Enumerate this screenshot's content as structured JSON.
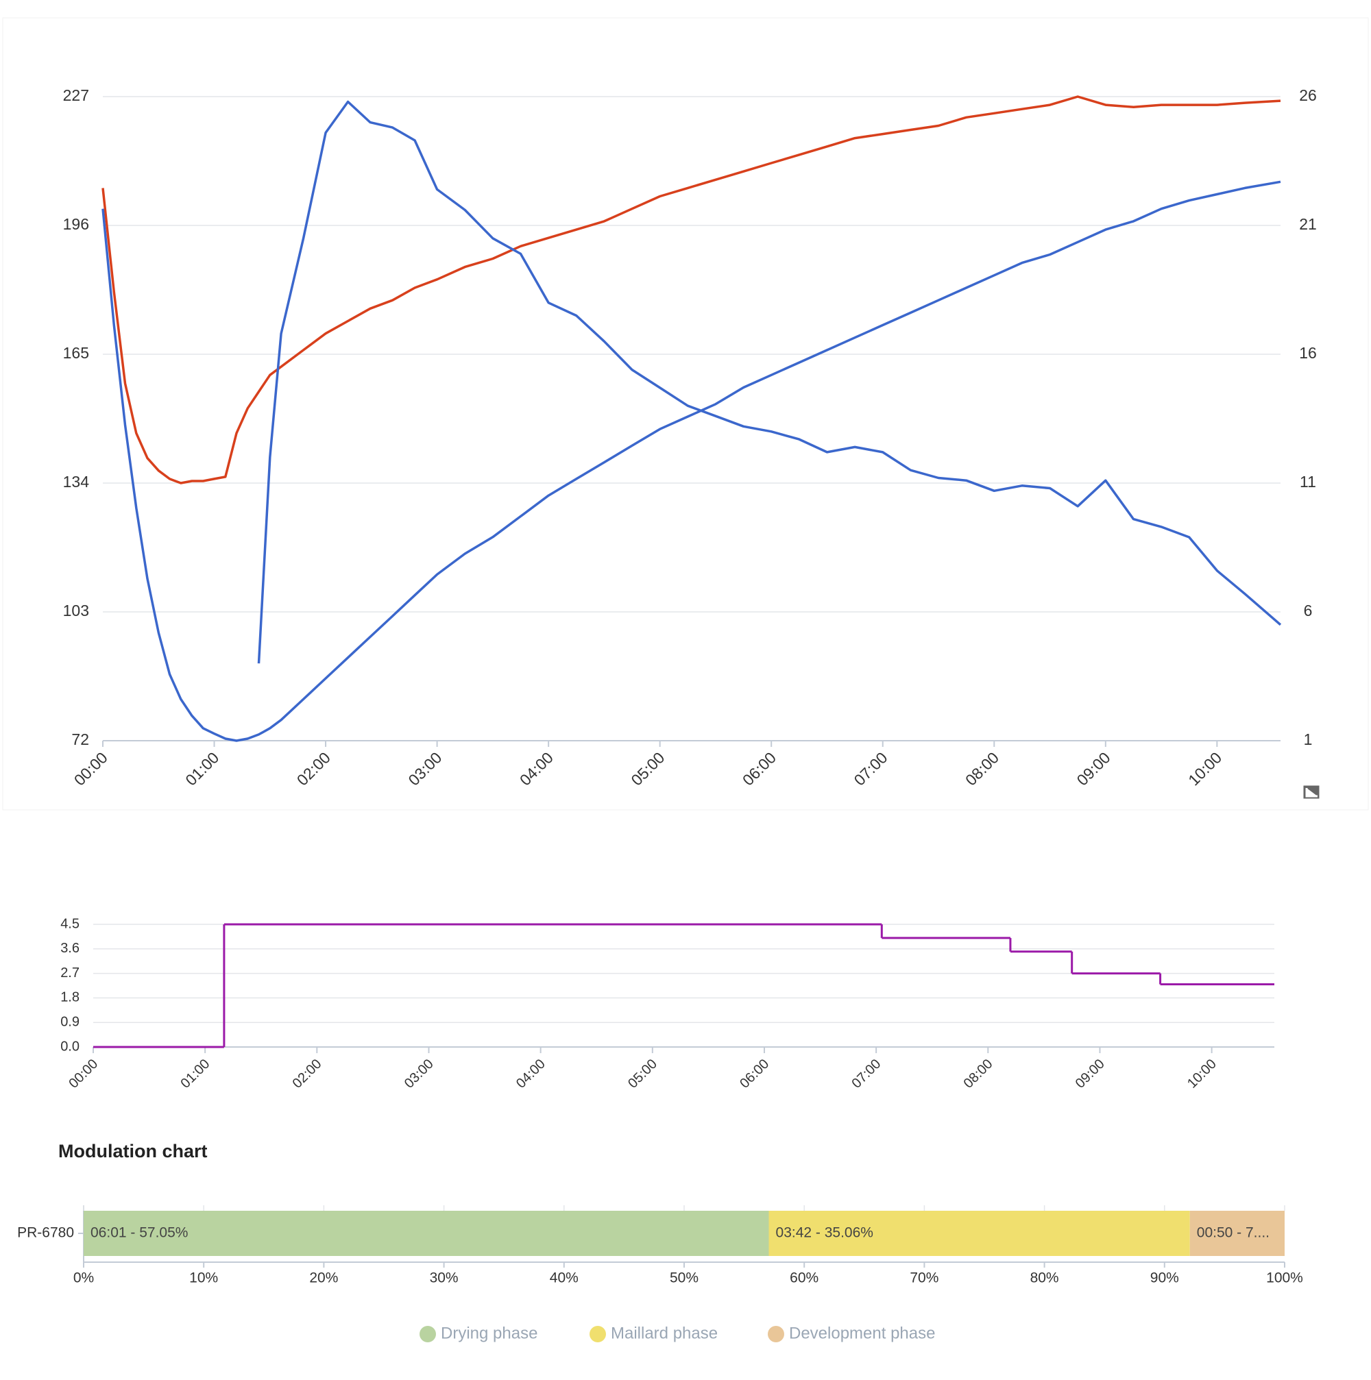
{
  "chart_data": [
    {
      "type": "line",
      "x": [
        0,
        0.1,
        0.2,
        0.3,
        0.4,
        0.5,
        0.6,
        0.7,
        0.8,
        0.9,
        1.0,
        1.1,
        1.2,
        1.3,
        1.4,
        1.5,
        1.6,
        1.8,
        2.0,
        2.2,
        2.4,
        2.6,
        2.8,
        3.0,
        3.25,
        3.5,
        3.75,
        4.0,
        4.25,
        4.5,
        4.75,
        5.0,
        5.25,
        5.5,
        5.75,
        6.0,
        6.25,
        6.5,
        6.75,
        7.0,
        7.25,
        7.5,
        7.75,
        8.0,
        8.25,
        8.5,
        8.75,
        9.0,
        9.25,
        9.5,
        9.75,
        10.0,
        10.25,
        10.57
      ],
      "xlim": [
        0,
        10.57
      ],
      "xticks": [
        {
          "value": 0,
          "label": "00:00"
        },
        {
          "value": 1,
          "label": "01:00"
        },
        {
          "value": 2,
          "label": "02:00"
        },
        {
          "value": 3,
          "label": "03:00"
        },
        {
          "value": 4,
          "label": "04:00"
        },
        {
          "value": 5,
          "label": "05:00"
        },
        {
          "value": 6,
          "label": "06:00"
        },
        {
          "value": 7,
          "label": "07:00"
        },
        {
          "value": 8,
          "label": "08:00"
        },
        {
          "value": 9,
          "label": "09:00"
        },
        {
          "value": 10,
          "label": "10:00"
        }
      ],
      "ylim": [
        72,
        227
      ],
      "yticks": [
        72,
        103,
        134,
        165,
        196,
        227
      ],
      "y2lim": [
        1,
        26
      ],
      "y2ticks": [
        1,
        6,
        11,
        16,
        21,
        26
      ],
      "grid": true,
      "series": [
        {
          "color": "#d8401c",
          "values": [
            205,
            180,
            158,
            146,
            140,
            137,
            135,
            134,
            134.5,
            134.5,
            135,
            135.5,
            146,
            152,
            156,
            160,
            162,
            166,
            170,
            173,
            176,
            178,
            181,
            183,
            186,
            188,
            191,
            193,
            195,
            197,
            200,
            203,
            205,
            207,
            209,
            211,
            213,
            215,
            217,
            218,
            219,
            220,
            222,
            223,
            224,
            225,
            227,
            225,
            224.5,
            225,
            225,
            225,
            225.5,
            226
          ]
        },
        {
          "color": "#3b67cc",
          "values": [
            200,
            172,
            148,
            128,
            111,
            98,
            88,
            82,
            78,
            75,
            73.7,
            72.5,
            72,
            72.5,
            73.5,
            75,
            77,
            82,
            87,
            92,
            97,
            102,
            107,
            112,
            117,
            121,
            126,
            131,
            135,
            139,
            143,
            147,
            150,
            153,
            157,
            160,
            163,
            166,
            169,
            172,
            175,
            178,
            181,
            184,
            187,
            189,
            192,
            195,
            197,
            200,
            202,
            203.5,
            205,
            206.5
          ]
        },
        {
          "color": "#3b67cc",
          "axis": "y2",
          "values": [
            null,
            null,
            null,
            null,
            null,
            null,
            null,
            null,
            null,
            null,
            null,
            null,
            null,
            null,
            4,
            12,
            16.8,
            20.5,
            24.6,
            25.8,
            25,
            24.8,
            24.3,
            22.4,
            21.6,
            20.5,
            19.9,
            18,
            17.5,
            16.5,
            15.4,
            14.7,
            14,
            13.6,
            13.2,
            13,
            12.7,
            12.2,
            12.4,
            12.2,
            11.5,
            11.2,
            11.1,
            10.7,
            10.9,
            10.8,
            10.1,
            11.1,
            9.6,
            9.3,
            8.9,
            7.6,
            6.7,
            5.5
          ]
        }
      ]
    },
    {
      "type": "line",
      "step": "post",
      "x": [
        0,
        1.17,
        7.05,
        8.2,
        8.75,
        9.54,
        10.56
      ],
      "xlim": [
        0,
        10.56
      ],
      "xticks": [
        {
          "value": 0,
          "label": "00:00"
        },
        {
          "value": 1,
          "label": "01:00"
        },
        {
          "value": 2,
          "label": "02:00"
        },
        {
          "value": 3,
          "label": "03:00"
        },
        {
          "value": 4,
          "label": "04:00"
        },
        {
          "value": 5,
          "label": "05:00"
        },
        {
          "value": 6,
          "label": "06:00"
        },
        {
          "value": 7,
          "label": "07:00"
        },
        {
          "value": 8,
          "label": "08:00"
        },
        {
          "value": 9,
          "label": "09:00"
        },
        {
          "value": 10,
          "label": "10:00"
        }
      ],
      "ylim": [
        0,
        4.5
      ],
      "yticks": [
        {
          "value": 0,
          "label": "0.0"
        },
        0.9,
        1.8,
        2.7,
        3.6,
        4.5
      ],
      "grid": true,
      "series": [
        {
          "color": "#9b1aa8",
          "values": [
            0,
            4.5,
            4.0,
            3.5,
            2.7,
            2.3,
            2.3
          ]
        }
      ]
    },
    {
      "type": "bar",
      "orientation": "horizontal",
      "stacked": true,
      "title": "Modulation chart",
      "categories": [
        "PR-6780"
      ],
      "xlim": [
        0,
        100
      ],
      "xticks": [
        {
          "value": 0,
          "label": "0%"
        },
        {
          "value": 10,
          "label": "10%"
        },
        {
          "value": 20,
          "label": "20%"
        },
        {
          "value": 30,
          "label": "30%"
        },
        {
          "value": 40,
          "label": "40%"
        },
        {
          "value": 50,
          "label": "50%"
        },
        {
          "value": 60,
          "label": "60%"
        },
        {
          "value": 70,
          "label": "70%"
        },
        {
          "value": 80,
          "label": "80%"
        },
        {
          "value": 90,
          "label": "90%"
        },
        {
          "value": 100,
          "label": "100%"
        }
      ],
      "legend": "bottom",
      "series": [
        {
          "name": "Drying phase",
          "color": "#b9d3a0",
          "values": [
            57.05
          ],
          "value_labels": [
            "06:01 - 57.05%"
          ]
        },
        {
          "name": "Maillard phase",
          "color": "#f0df6e",
          "values": [
            35.06
          ],
          "value_labels": [
            "03:42 - 35.06%"
          ]
        },
        {
          "name": "Development phase",
          "color": "#e9c698",
          "values": [
            7.89
          ],
          "value_labels": [
            "00:50 - 7...."
          ]
        }
      ]
    }
  ]
}
